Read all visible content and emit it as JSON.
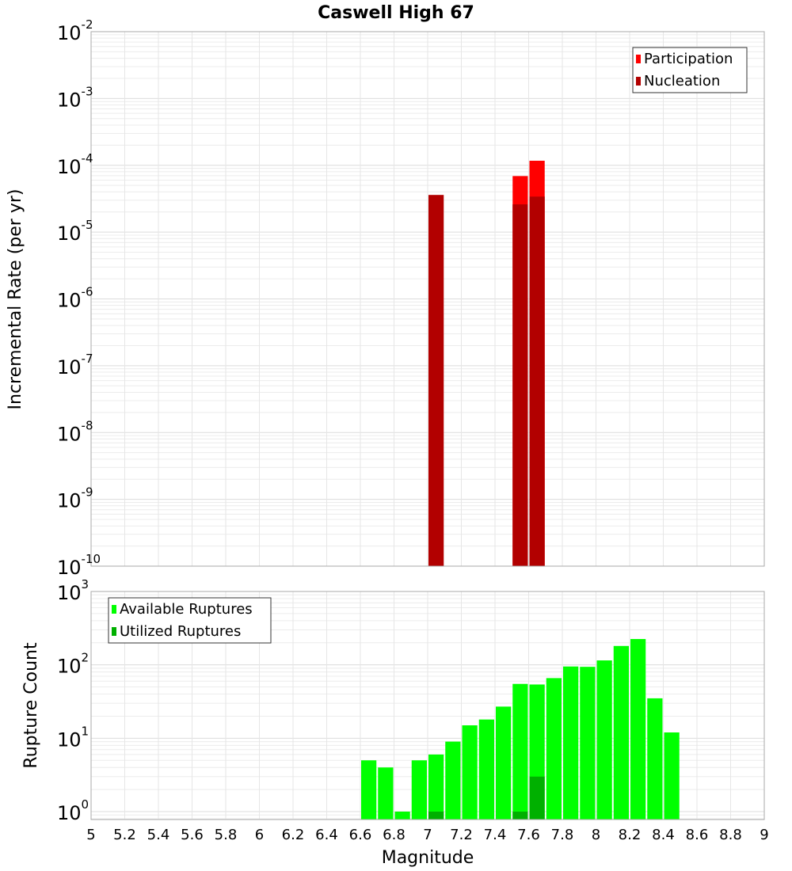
{
  "chart_data": [
    {
      "type": "bar",
      "title": "Caswell High 67",
      "xlabel": "Magnitude",
      "ylabel": "Incremental Rate (per yr)",
      "yscale": "log",
      "ylim": [
        1e-10,
        0.01
      ],
      "xlim": [
        5,
        9
      ],
      "y_tick_exponents": [
        -2,
        -3,
        -4,
        -5,
        -6,
        -7,
        -8,
        -9,
        -10
      ],
      "y_tick_base": "10",
      "bin_width": 0.1,
      "legend_position": "top-right",
      "grid": true,
      "series": [
        {
          "name": "Participation",
          "color": "#ff0000",
          "x": [
            7.55,
            7.65
          ],
          "values": [
            6.9e-05,
            0.000117
          ]
        },
        {
          "name": "Nucleation",
          "color": "#b20000",
          "x": [
            7.05,
            7.55,
            7.65
          ],
          "values": [
            3.6e-05,
            2.6e-05,
            3.4e-05
          ]
        }
      ]
    },
    {
      "type": "bar",
      "xlabel": "Magnitude",
      "ylabel": "Rupture Count",
      "yscale": "log",
      "ylim": [
        0.78,
        1000
      ],
      "xlim": [
        5,
        9
      ],
      "y_tick_exponents": [
        3,
        2,
        1,
        0
      ],
      "y_tick_base": "10",
      "bin_width": 0.1,
      "legend_position": "top-left",
      "grid": true,
      "x_ticks": [
        "5",
        "5.2",
        "5.4",
        "5.6",
        "5.8",
        "6",
        "6.2",
        "6.4",
        "6.6",
        "6.8",
        "7",
        "7.2",
        "7.4",
        "7.6",
        "7.8",
        "8",
        "8.2",
        "8.4",
        "8.6",
        "8.8",
        "9"
      ],
      "series": [
        {
          "name": "Available Ruptures",
          "color": "#00ff00",
          "x": [
            6.65,
            6.75,
            6.85,
            6.95,
            7.05,
            7.15,
            7.25,
            7.35,
            7.45,
            7.55,
            7.65,
            7.75,
            7.85,
            7.95,
            8.05,
            8.15,
            8.25,
            8.35,
            8.45
          ],
          "values": [
            5,
            4,
            1,
            5,
            6,
            9,
            15,
            18,
            27,
            55,
            54,
            66,
            95,
            94,
            115,
            181,
            225,
            35,
            12
          ]
        },
        {
          "name": "Utilized Ruptures",
          "color": "#00b000",
          "x": [
            7.05,
            7.55,
            7.65
          ],
          "values": [
            1,
            1,
            3
          ]
        }
      ]
    }
  ]
}
